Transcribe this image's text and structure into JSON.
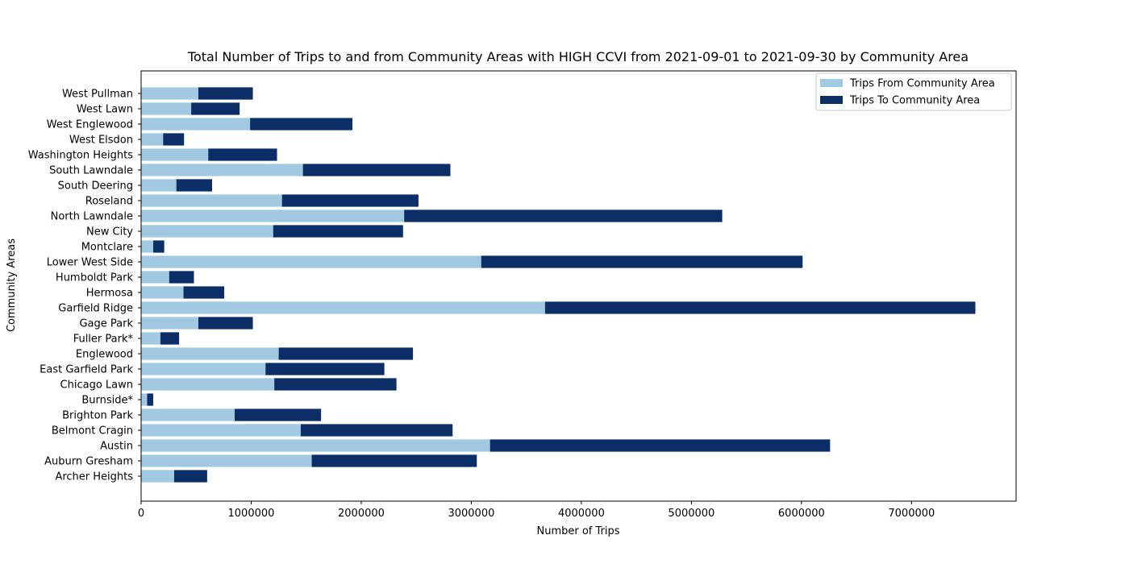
{
  "chart_data": {
    "type": "bar",
    "orientation": "horizontal",
    "stacked": true,
    "title": "Total Number of Trips to and from Community Areas with HIGH CCVI from 2021-09-01 to 2021-09-30 by Community Area",
    "xlabel": "Number of Trips",
    "ylabel": "Community Areas",
    "xlim": [
      0,
      7950000
    ],
    "xticks": [
      0,
      1000000,
      2000000,
      3000000,
      4000000,
      5000000,
      6000000,
      7000000
    ],
    "xtick_labels": [
      "0",
      "1000000",
      "2000000",
      "3000000",
      "4000000",
      "5000000",
      "6000000",
      "7000000"
    ],
    "grid": false,
    "legend_position": "top-right",
    "categories": [
      "Archer Heights",
      "Auburn Gresham",
      "Austin",
      "Belmont Cragin",
      "Brighton Park",
      "Burnside*",
      "Chicago Lawn",
      "East Garfield Park",
      "Englewood",
      "Fuller Park*",
      "Gage Park",
      "Garfield Ridge",
      "Hermosa",
      "Humboldt Park",
      "Lower West Side",
      "Montclare",
      "New City",
      "North Lawndale",
      "Roseland",
      "South Deering",
      "South Lawndale",
      "Washington Heights",
      "West Elsdon",
      "West Englewood",
      "West Lawn",
      "West Pullman"
    ],
    "series": [
      {
        "name": "Trips From Community Area",
        "color": "#a1cae2",
        "values": [
          300000,
          1550000,
          3170000,
          1450000,
          850000,
          55000,
          1210000,
          1130000,
          1250000,
          175000,
          520000,
          3670000,
          385000,
          255000,
          3090000,
          110000,
          1200000,
          2390000,
          1280000,
          320000,
          1470000,
          610000,
          200000,
          990000,
          455000,
          520000
        ]
      },
      {
        "name": "Trips To Community Area",
        "color": "#0b2e66",
        "values": [
          300000,
          1500000,
          3090000,
          1380000,
          785000,
          55000,
          1110000,
          1080000,
          1220000,
          170000,
          495000,
          3910000,
          370000,
          225000,
          2920000,
          100000,
          1180000,
          2890000,
          1240000,
          325000,
          1340000,
          625000,
          190000,
          930000,
          440000,
          495000
        ]
      }
    ]
  }
}
